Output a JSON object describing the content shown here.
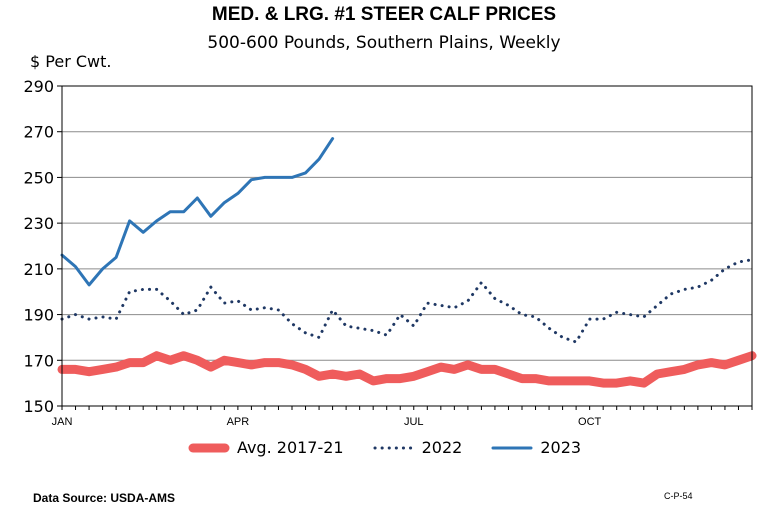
{
  "chart_data": {
    "type": "line",
    "title": "MED. & LRG. #1 STEER CALF PRICES",
    "subtitle": "500-600 Pounds, Southern Plains, Weekly",
    "ylabel": "$ Per Cwt.",
    "ylim": [
      150,
      290
    ],
    "yticks": [
      "150",
      "170",
      "190",
      "210",
      "230",
      "250",
      "270",
      "290"
    ],
    "xlim": [
      1,
      52
    ],
    "xticks": [
      {
        "label": "JAN",
        "week": 1
      },
      {
        "label": "APR",
        "week": 14
      },
      {
        "label": "JUL",
        "week": 27
      },
      {
        "label": "OCT",
        "week": 40
      }
    ],
    "grid": true,
    "legend_position": "bottom",
    "series": [
      {
        "name": "Avg. 2017-21",
        "color": "#ef5c5c",
        "style": "thick",
        "x": [
          1,
          2,
          3,
          4,
          5,
          6,
          7,
          8,
          9,
          10,
          11,
          12,
          13,
          14,
          15,
          16,
          17,
          18,
          19,
          20,
          21,
          22,
          23,
          24,
          25,
          26,
          27,
          28,
          29,
          30,
          31,
          32,
          33,
          34,
          35,
          36,
          37,
          38,
          39,
          40,
          41,
          42,
          43,
          44,
          45,
          46,
          47,
          48,
          49,
          50,
          51,
          52
        ],
        "values": [
          166,
          166,
          165,
          166,
          167,
          169,
          169,
          172,
          170,
          172,
          170,
          167,
          170,
          169,
          168,
          169,
          169,
          168,
          166,
          163,
          164,
          163,
          164,
          161,
          162,
          162,
          163,
          165,
          167,
          166,
          168,
          166,
          166,
          164,
          162,
          162,
          161,
          161,
          161,
          161,
          160,
          160,
          161,
          160,
          164,
          165,
          166,
          168,
          169,
          168,
          170,
          172
        ]
      },
      {
        "name": "2022",
        "color": "#1f3864",
        "style": "dotted",
        "x": [
          1,
          2,
          3,
          4,
          5,
          6,
          7,
          8,
          9,
          10,
          11,
          12,
          13,
          14,
          15,
          16,
          17,
          18,
          19,
          20,
          21,
          22,
          23,
          24,
          25,
          26,
          27,
          28,
          29,
          30,
          31,
          32,
          33,
          34,
          35,
          36,
          37,
          38,
          39,
          40,
          41,
          42,
          43,
          44,
          45,
          46,
          47,
          48,
          49,
          50,
          51,
          52
        ],
        "values": [
          188,
          190,
          188,
          189,
          188,
          200,
          201,
          201,
          196,
          190,
          192,
          202,
          195,
          196,
          192,
          193,
          192,
          186,
          182,
          180,
          192,
          185,
          184,
          183,
          181,
          190,
          185,
          195,
          194,
          193,
          196,
          204,
          197,
          194,
          190,
          189,
          184,
          180,
          178,
          188,
          188,
          191,
          190,
          189,
          194,
          199,
          201,
          202,
          205,
          210,
          213,
          214
        ]
      },
      {
        "name": "2023",
        "color": "#2e75b6",
        "style": "solid",
        "x": [
          1,
          2,
          3,
          4,
          5,
          6,
          7,
          8,
          9,
          10,
          11,
          12,
          13,
          14,
          15,
          16,
          17,
          18,
          19,
          20,
          21
        ],
        "values": [
          216,
          211,
          203,
          210,
          215,
          231,
          226,
          231,
          235,
          235,
          241,
          233,
          239,
          243,
          249,
          250,
          250,
          250,
          252,
          258,
          267
        ]
      }
    ]
  },
  "footer": {
    "source": "Data Source:  USDA-AMS",
    "code": "C-P-54"
  }
}
